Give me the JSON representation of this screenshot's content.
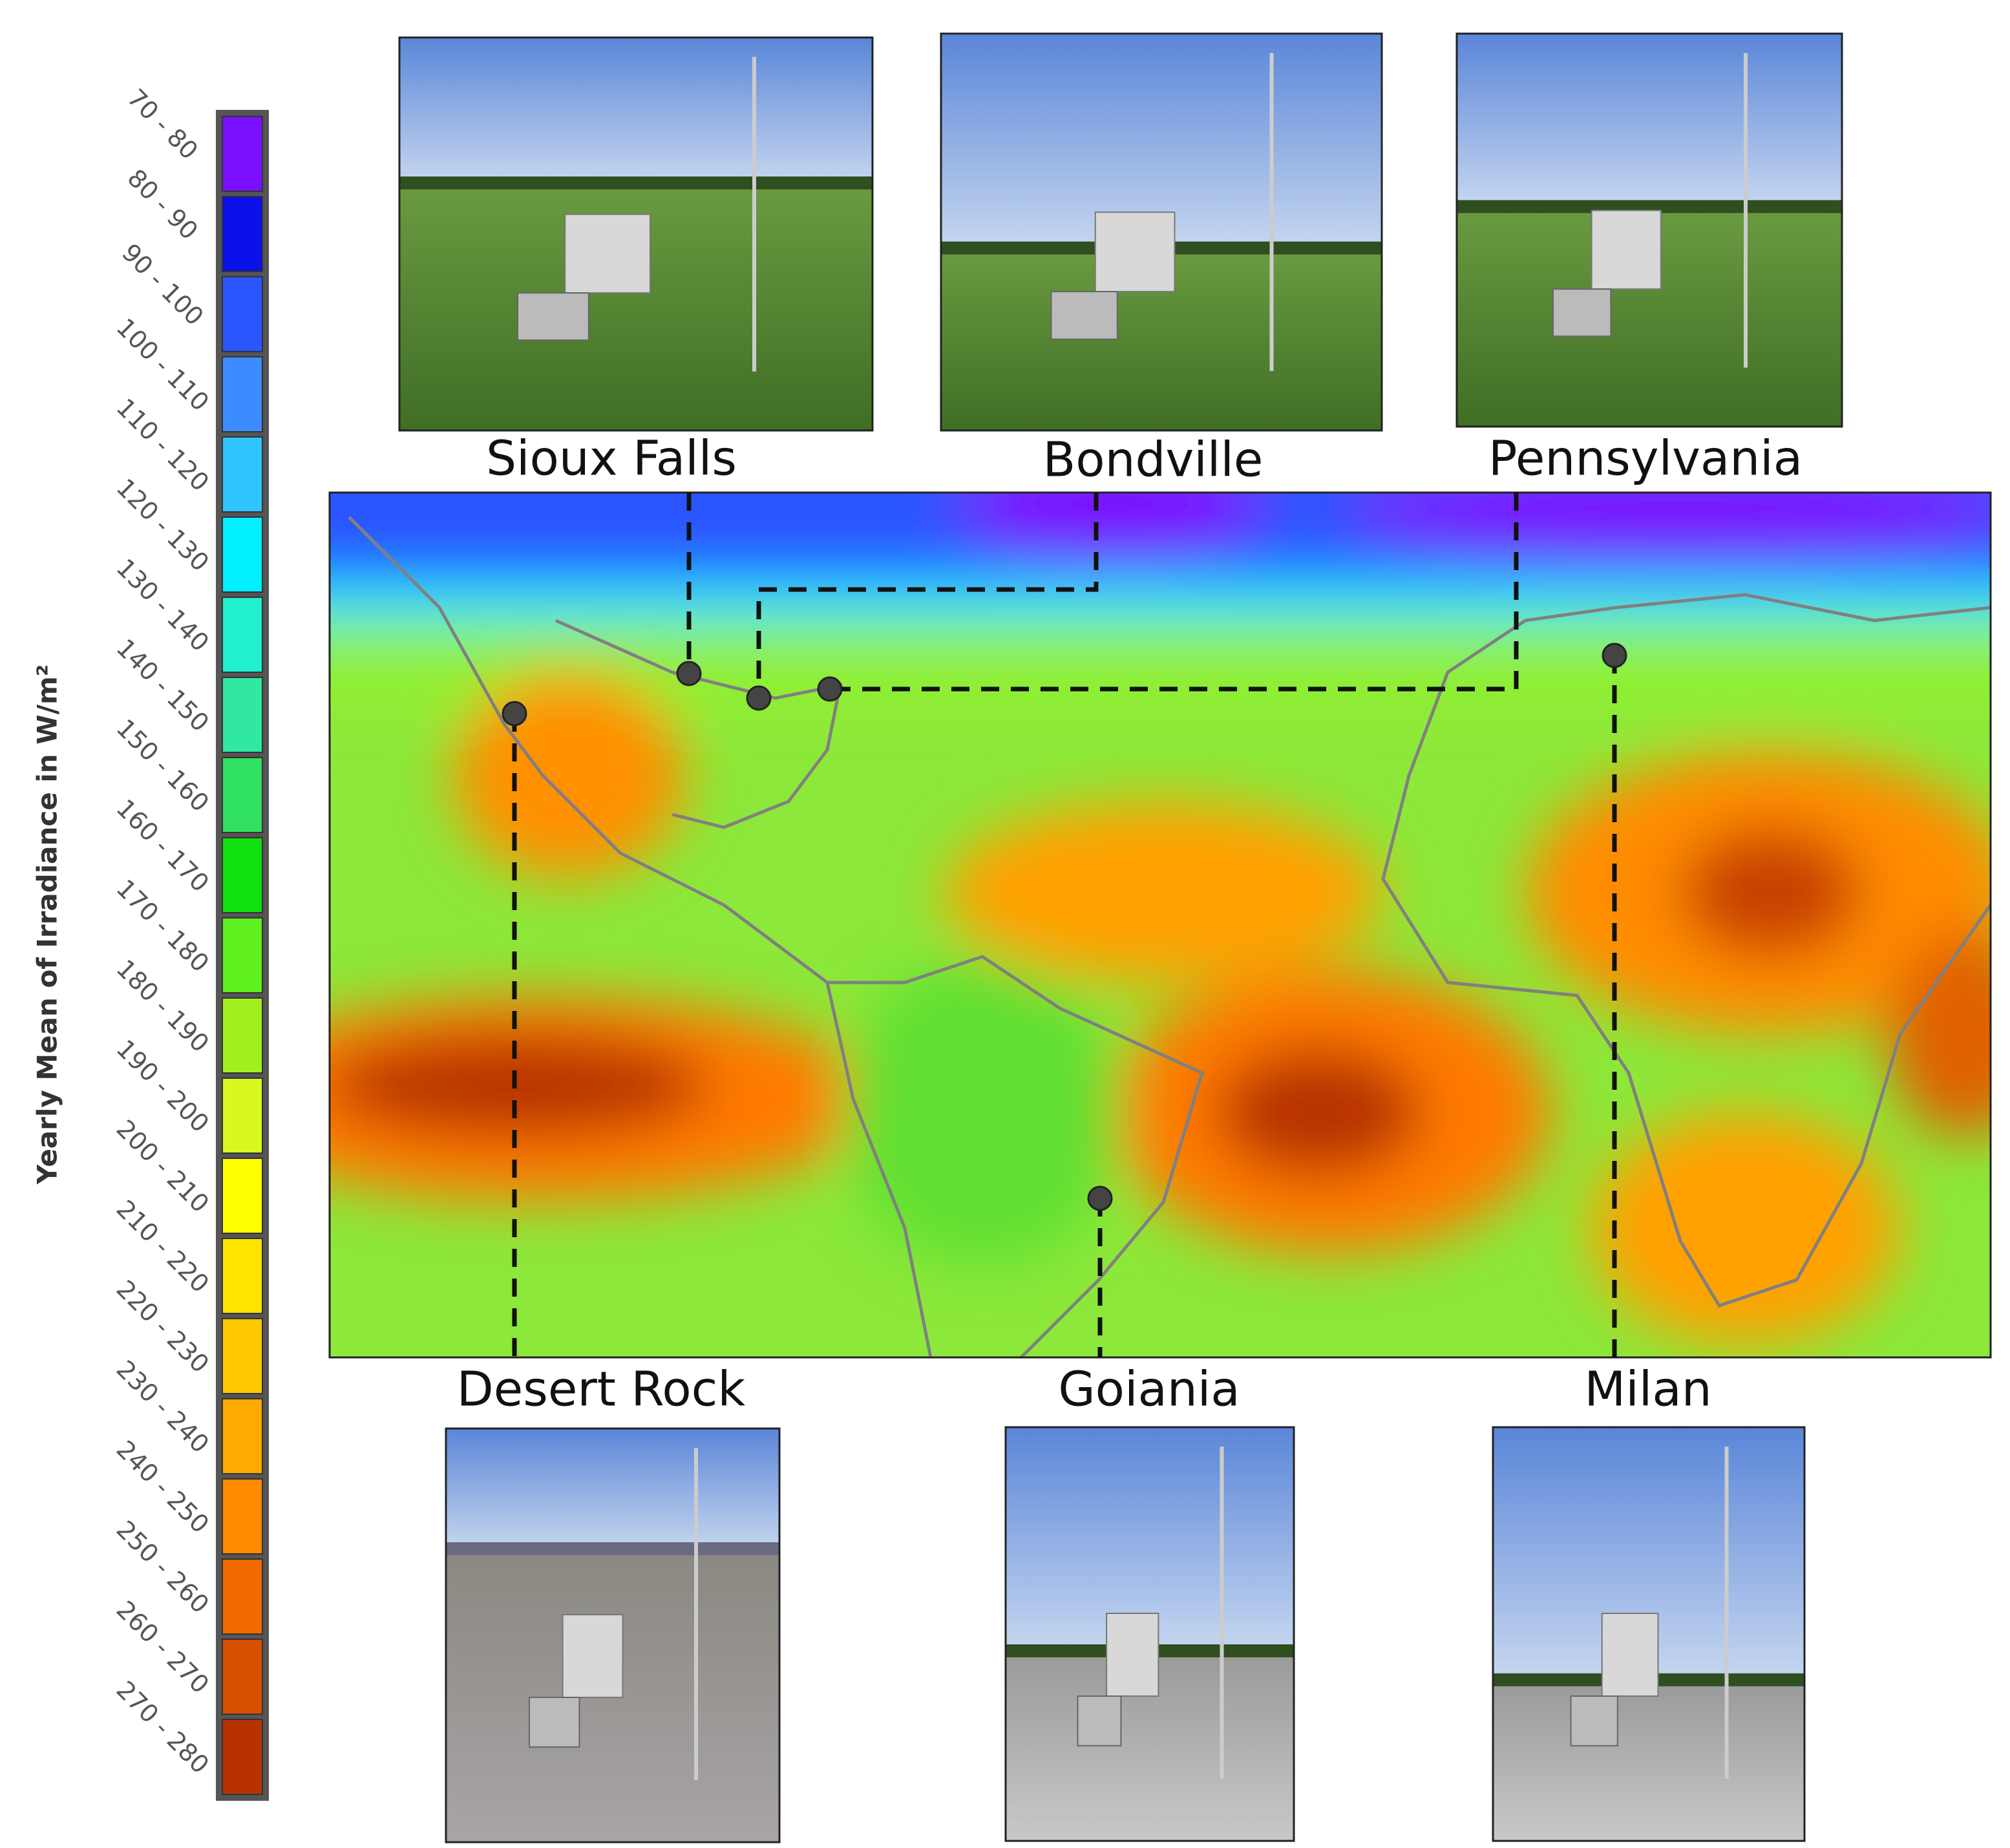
{
  "legend": {
    "title": "Yearly Mean of Irradiance in W/m²",
    "bins": [
      {
        "label": "70 - 80",
        "color": "#7a10ff"
      },
      {
        "label": "80 - 90",
        "color": "#0a10e8"
      },
      {
        "label": "90 - 100",
        "color": "#2a55ff"
      },
      {
        "label": "100 - 110",
        "color": "#3c8cff"
      },
      {
        "label": "110 - 120",
        "color": "#30c4ff"
      },
      {
        "label": "120 - 130",
        "color": "#00f0ff"
      },
      {
        "label": "130 - 140",
        "color": "#20f0d0"
      },
      {
        "label": "140 - 150",
        "color": "#30e8a0"
      },
      {
        "label": "150 - 160",
        "color": "#30e060"
      },
      {
        "label": "160 - 170",
        "color": "#10e010"
      },
      {
        "label": "170 - 180",
        "color": "#60f020"
      },
      {
        "label": "180 - 190",
        "color": "#a0f020"
      },
      {
        "label": "190 - 200",
        "color": "#d8f820"
      },
      {
        "label": "200 - 210",
        "color": "#ffff00"
      },
      {
        "label": "210 - 220",
        "color": "#ffe400"
      },
      {
        "label": "220 - 230",
        "color": "#ffc800"
      },
      {
        "label": "230 - 240",
        "color": "#ffaa00"
      },
      {
        "label": "240 - 250",
        "color": "#ff8c00"
      },
      {
        "label": "250 - 260",
        "color": "#f06a00"
      },
      {
        "label": "260 - 270",
        "color": "#d85000"
      },
      {
        "label": "270 - 280",
        "color": "#b83200"
      }
    ]
  },
  "sites": [
    "Sioux Falls",
    "Bondville",
    "Pennsylvania",
    "Desert Rock",
    "Goiania",
    "Milan"
  ]
}
